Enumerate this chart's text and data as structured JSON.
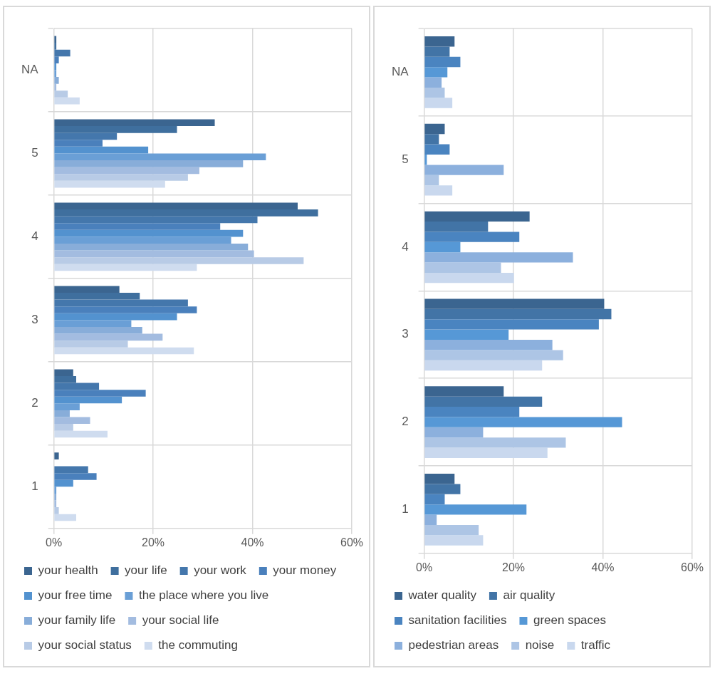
{
  "chart_data": [
    {
      "type": "bar",
      "orientation": "horizontal",
      "categories": [
        "NA",
        "5",
        "4",
        "3",
        "2",
        "1"
      ],
      "xlim": [
        0,
        60
      ],
      "xticks": [
        {
          "value": 0,
          "label": "0%"
        },
        {
          "value": 20,
          "label": "20%"
        },
        {
          "value": 40,
          "label": "40%"
        },
        {
          "value": 60,
          "label": "60%"
        }
      ],
      "grid": true,
      "legend": "bottom",
      "series": [
        {
          "name": "your health",
          "color": "#3b6590",
          "values": [
            0.5,
            32.4,
            49.1,
            13.2,
            3.9,
            1.0
          ]
        },
        {
          "name": "your life",
          "color": "#3f6f9e",
          "values": [
            0.5,
            24.8,
            53.2,
            17.3,
            4.5,
            0
          ]
        },
        {
          "name": "your work",
          "color": "#4477ac",
          "values": [
            3.3,
            12.7,
            41.0,
            27.0,
            9.1,
            6.9
          ]
        },
        {
          "name": "your money",
          "color": "#4a80bc",
          "values": [
            1.0,
            9.8,
            33.5,
            28.8,
            18.5,
            8.6
          ]
        },
        {
          "name": "your free time",
          "color": "#5392cf",
          "values": [
            0.5,
            19.0,
            38.1,
            24.8,
            13.7,
            3.9
          ]
        },
        {
          "name": "the place where you live",
          "color": "#6a9fd6",
          "values": [
            0.5,
            42.7,
            35.7,
            15.6,
            5.2,
            0.5
          ]
        },
        {
          "name": "your family life",
          "color": "#88add9",
          "values": [
            1.0,
            38.1,
            39.1,
            17.8,
            3.2,
            0.5
          ]
        },
        {
          "name": "your social life",
          "color": "#a3bce0",
          "values": [
            0.5,
            29.3,
            40.3,
            21.9,
            7.3,
            0.5
          ]
        },
        {
          "name": "your social status",
          "color": "#b8cbe6",
          "values": [
            2.8,
            27.0,
            50.3,
            14.9,
            3.9,
            1.0
          ]
        },
        {
          "name": "the commuting",
          "color": "#cfdcef",
          "values": [
            5.2,
            22.4,
            28.8,
            28.2,
            10.8,
            4.5
          ]
        }
      ]
    },
    {
      "type": "bar",
      "orientation": "horizontal",
      "categories": [
        "NA",
        "5",
        "4",
        "3",
        "2",
        "1"
      ],
      "xlim": [
        0,
        60
      ],
      "xticks": [
        {
          "value": 0,
          "label": "0%"
        },
        {
          "value": 20,
          "label": "20%"
        },
        {
          "value": 40,
          "label": "40%"
        },
        {
          "value": 60,
          "label": "60%"
        }
      ],
      "grid": true,
      "legend": "bottom",
      "series": [
        {
          "name": "water quality",
          "color": "#3b6590",
          "values": [
            6.8,
            4.6,
            23.6,
            40.3,
            17.8,
            6.8
          ]
        },
        {
          "name": "air quality",
          "color": "#4274a6",
          "values": [
            5.7,
            3.3,
            14.3,
            41.9,
            26.4,
            8.1
          ]
        },
        {
          "name": "sanitation facilities",
          "color": "#4a84c0",
          "values": [
            8.1,
            5.7,
            21.3,
            39.1,
            21.3,
            4.6
          ]
        },
        {
          "name": "green spaces",
          "color": "#5698d6",
          "values": [
            5.2,
            0.6,
            8.1,
            18.9,
            44.3,
            22.9
          ]
        },
        {
          "name": "pedestrian areas",
          "color": "#8cb0dd",
          "values": [
            3.9,
            17.8,
            33.3,
            28.7,
            13.2,
            2.8
          ]
        },
        {
          "name": "noise",
          "color": "#adc5e5",
          "values": [
            4.6,
            3.3,
            17.2,
            31.1,
            31.7,
            12.2
          ]
        },
        {
          "name": "traffic",
          "color": "#c9d8ee",
          "values": [
            6.3,
            6.3,
            20.1,
            26.4,
            27.6,
            13.2
          ]
        }
      ]
    }
  ]
}
